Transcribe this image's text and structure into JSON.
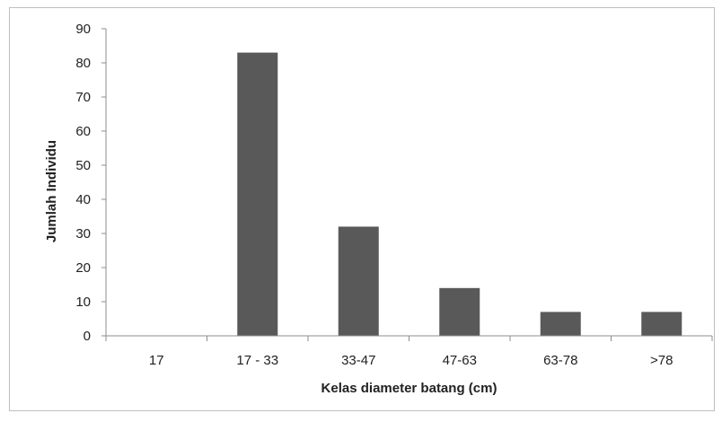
{
  "chart_data": {
    "type": "bar",
    "title": "",
    "xlabel": "Kelas diameter batang (cm)",
    "ylabel": "Jumlah Individu",
    "categories": [
      "17",
      "17 - 33",
      "33-47",
      "47-63",
      "63-78",
      ">78"
    ],
    "values": [
      0,
      83,
      32,
      14,
      7,
      7
    ],
    "ylim": [
      0,
      90
    ],
    "yticks": [
      "0",
      "10",
      "20",
      "30",
      "40",
      "50",
      "60",
      "70",
      "80",
      "90"
    ],
    "grid": false,
    "legend": "none",
    "bar_color": "#595959",
    "axis_color": "#8c8c8c"
  }
}
